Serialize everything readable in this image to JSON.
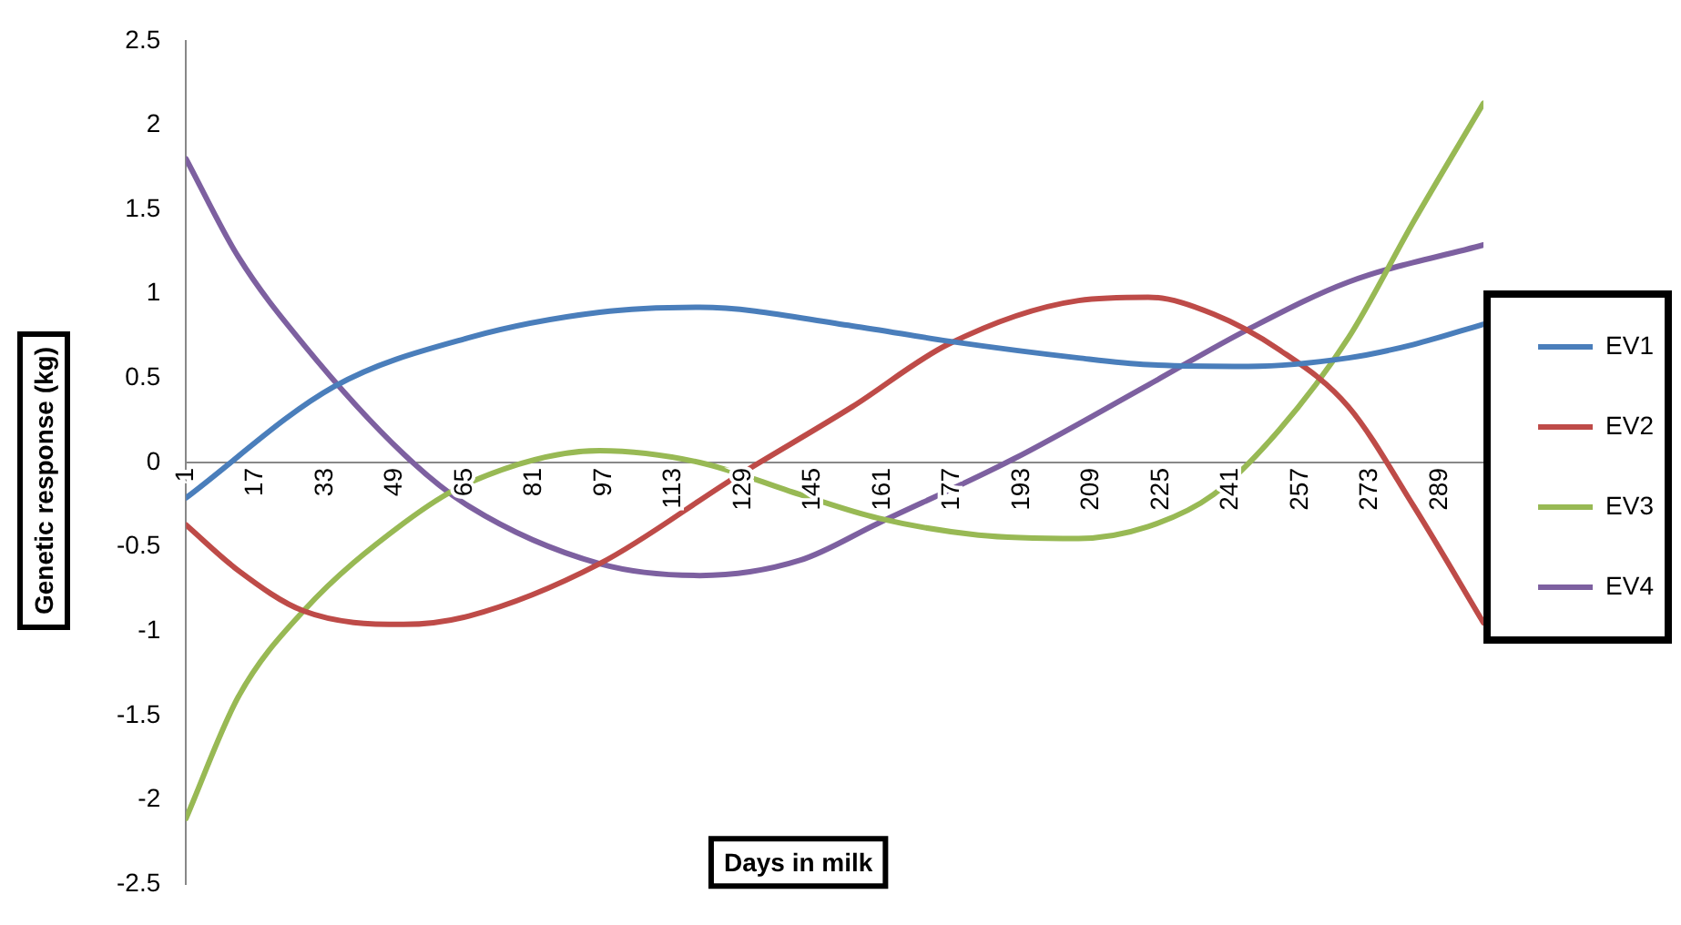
{
  "chart_data": {
    "type": "line",
    "xlabel": "Days in milk",
    "ylabel": "Genetic response (kg)",
    "xlim": [
      1,
      299
    ],
    "xticks": [
      1,
      17,
      33,
      49,
      65,
      81,
      97,
      113,
      129,
      145,
      161,
      177,
      193,
      209,
      225,
      241,
      257,
      273,
      289
    ],
    "ylim": [
      -2.5,
      2.5
    ],
    "yticks": [
      -2.5,
      -2,
      -1.5,
      -1,
      -0.5,
      0,
      0.5,
      1,
      1.5,
      2,
      2.5
    ],
    "grid": false,
    "legend": "right",
    "marker": "none",
    "line_style": "solid",
    "series": [
      {
        "name": "EV1",
        "color": "#4a7ebb",
        "x": [
          1,
          35,
          66,
          96,
          119,
          154,
          176,
          206,
          222,
          245,
          268,
          283,
          299
        ],
        "values": [
          -0.21,
          0.45,
          0.74,
          0.89,
          0.92,
          0.81,
          0.72,
          0.62,
          0.58,
          0.57,
          0.62,
          0.7,
          0.82
        ]
      },
      {
        "name": "EV2",
        "color": "#be4b48",
        "x": [
          1,
          13,
          28,
          51,
          66,
          96,
          127,
          154,
          176,
          206,
          222,
          237,
          252,
          268,
          283,
          299
        ],
        "values": [
          -0.37,
          -0.64,
          -0.88,
          -0.96,
          -0.91,
          -0.6,
          -0.09,
          0.33,
          0.7,
          0.96,
          0.98,
          0.88,
          0.67,
          0.33,
          -0.26,
          -0.95
        ]
      },
      {
        "name": "EV3",
        "color": "#98b954",
        "x": [
          1,
          13,
          28,
          51,
          66,
          96,
          119,
          142,
          160,
          183,
          206,
          222,
          237,
          252,
          268,
          283,
          299
        ],
        "values": [
          -2.11,
          -1.39,
          -0.88,
          -0.36,
          -0.12,
          0.07,
          0,
          -0.19,
          -0.33,
          -0.43,
          -0.45,
          -0.38,
          -0.19,
          0.19,
          0.74,
          1.43,
          2.13
        ]
      },
      {
        "name": "EV4",
        "color": "#7d60a0",
        "x": [
          1,
          13,
          28,
          51,
          66,
          96,
          119,
          142,
          160,
          191,
          222,
          245,
          268,
          299
        ],
        "values": [
          1.8,
          1.22,
          0.7,
          0.05,
          -0.26,
          -0.6,
          -0.67,
          -0.58,
          -0.36,
          0.02,
          0.46,
          0.79,
          1.07,
          1.29
        ]
      }
    ]
  }
}
